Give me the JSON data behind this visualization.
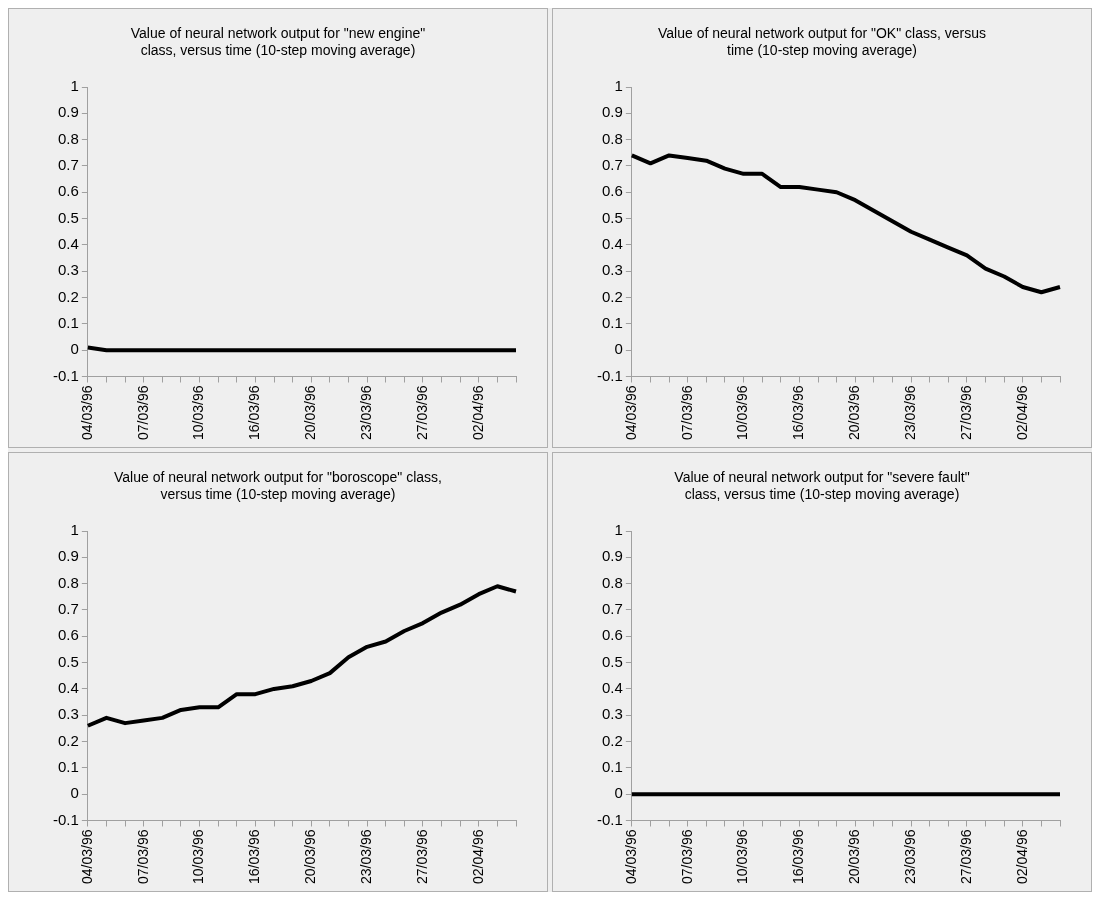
{
  "chart_data": [
    {
      "type": "line",
      "title": "Value of neural network output for \"new engine\" class, versus time (10-step moving average)",
      "categories": [
        "04/03/96",
        null,
        null,
        "07/03/96",
        null,
        null,
        "10/03/96",
        null,
        null,
        "16/03/96",
        null,
        null,
        "20/03/96",
        null,
        null,
        "23/03/96",
        null,
        null,
        "27/03/96",
        null,
        null,
        "02/04/96",
        null,
        null
      ],
      "series": [
        {
          "color": "#000000",
          "values": [
            0.01,
            0,
            0,
            0,
            0,
            0,
            0,
            0,
            0,
            0,
            0,
            0,
            0,
            0,
            0,
            0,
            0,
            0,
            0,
            0,
            0,
            0,
            0,
            0
          ]
        }
      ],
      "ylim": [
        -0.1,
        1
      ],
      "yticks": [
        -0.1,
        0,
        0.1,
        0.2,
        0.3,
        0.4,
        0.5,
        0.6,
        0.7,
        0.8,
        0.9,
        1
      ],
      "marker": "none"
    },
    {
      "type": "line",
      "title": "Value of neural network output for \"OK\" class, versus time (10-step moving average)",
      "categories": [
        "04/03/96",
        null,
        null,
        "07/03/96",
        null,
        null,
        "10/03/96",
        null,
        null,
        "16/03/96",
        null,
        null,
        "20/03/96",
        null,
        null,
        "23/03/96",
        null,
        null,
        "27/03/96",
        null,
        null,
        "02/04/96",
        null,
        null
      ],
      "series": [
        {
          "color": "#000000",
          "values": [
            0.74,
            0.71,
            0.74,
            0.73,
            0.72,
            0.69,
            0.67,
            0.67,
            0.62,
            0.62,
            0.61,
            0.6,
            0.57,
            0.53,
            0.49,
            0.45,
            0.42,
            0.39,
            0.36,
            0.31,
            0.28,
            0.24,
            0.22,
            0.24
          ]
        }
      ],
      "ylim": [
        -0.1,
        1
      ],
      "yticks": [
        -0.1,
        0,
        0.1,
        0.2,
        0.3,
        0.4,
        0.5,
        0.6,
        0.7,
        0.8,
        0.9,
        1
      ],
      "marker": "none"
    },
    {
      "type": "line",
      "title": "Value of neural network output for \"boroscope\" class, versus time (10-step moving average)",
      "categories": [
        "04/03/96",
        null,
        null,
        "07/03/96",
        null,
        null,
        "10/03/96",
        null,
        null,
        "16/03/96",
        null,
        null,
        "20/03/96",
        null,
        null,
        "23/03/96",
        null,
        null,
        "27/03/96",
        null,
        null,
        "02/04/96",
        null,
        null
      ],
      "series": [
        {
          "color": "#000000",
          "values": [
            0.26,
            0.29,
            0.27,
            0.28,
            0.29,
            0.32,
            0.33,
            0.33,
            0.38,
            0.38,
            0.4,
            0.41,
            0.43,
            0.46,
            0.52,
            0.56,
            0.58,
            0.62,
            0.65,
            0.69,
            0.72,
            0.76,
            0.79,
            0.77
          ]
        }
      ],
      "ylim": [
        -0.1,
        1
      ],
      "yticks": [
        -0.1,
        0,
        0.1,
        0.2,
        0.3,
        0.4,
        0.5,
        0.6,
        0.7,
        0.8,
        0.9,
        1
      ],
      "marker": "none"
    },
    {
      "type": "line",
      "title": "Value of neural network output for \"severe fault\" class, versus time (10-step moving average)",
      "categories": [
        "04/03/96",
        null,
        null,
        "07/03/96",
        null,
        null,
        "10/03/96",
        null,
        null,
        "16/03/96",
        null,
        null,
        "20/03/96",
        null,
        null,
        "23/03/96",
        null,
        null,
        "27/03/96",
        null,
        null,
        "02/04/96",
        null,
        null
      ],
      "series": [
        {
          "color": "#000000",
          "values": [
            0,
            0,
            0,
            0,
            0,
            0,
            0,
            0,
            0,
            0,
            0,
            0,
            0,
            0,
            0,
            0,
            0,
            0,
            0,
            0,
            0,
            0,
            0,
            0
          ]
        }
      ],
      "ylim": [
        -0.1,
        1
      ],
      "yticks": [
        -0.1,
        0,
        0.1,
        0.2,
        0.3,
        0.4,
        0.5,
        0.6,
        0.7,
        0.8,
        0.9,
        1
      ],
      "marker": "none"
    }
  ]
}
